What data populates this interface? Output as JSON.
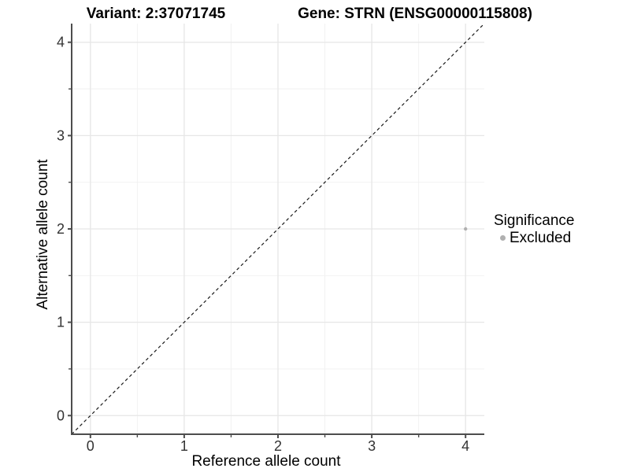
{
  "titles": {
    "variant": "Variant: 2:37071745",
    "gene": "Gene: STRN (ENSG00000115808)"
  },
  "chart_data": {
    "type": "scatter",
    "xlabel": "Reference allele count",
    "ylabel": "Alternative allele count",
    "xlim": [
      -0.2,
      4.2
    ],
    "ylim": [
      -0.2,
      4.2
    ],
    "x_ticks": [
      0,
      1,
      2,
      3,
      4
    ],
    "y_ticks": [
      0,
      1,
      2,
      3,
      4
    ],
    "x_minor_ticks": [
      0.5,
      1.5,
      2.5,
      3.5
    ],
    "y_minor_ticks": [
      0.5,
      1.5,
      2.5,
      3.5
    ],
    "grid": true,
    "points": [
      {
        "x": 4,
        "y": 2,
        "series": "Excluded"
      }
    ],
    "reference_line": {
      "slope": 1,
      "intercept": 0,
      "linetype": "dashed"
    },
    "legend": {
      "title": "Significance",
      "position": "right",
      "entries": [
        {
          "label": "Excluded",
          "color": "#b0b0b0"
        }
      ]
    }
  },
  "colors": {
    "point": "#b0b0b0",
    "grid_major": "#e6e6e6",
    "grid_minor": "#f2f2f2",
    "axis_line": "#4d4d4d",
    "reference_line": "#1a1a1a",
    "tick_text": "#333333",
    "title_text": "#000000"
  }
}
